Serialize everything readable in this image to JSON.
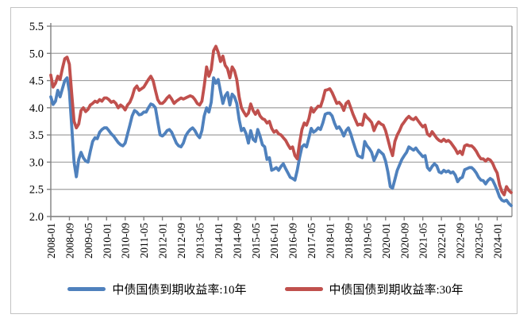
{
  "chart_data": {
    "type": "line",
    "x_start": "2008-01",
    "x_end": "2024-07",
    "x_interval": "monthly",
    "x_tick_every": 8,
    "x_tick_labels": [
      "2008-01",
      "2008-09",
      "2009-05",
      "2010-01",
      "2010-09",
      "2011-05",
      "2012-01",
      "2012-09",
      "2013-05",
      "2014-01",
      "2014-09",
      "2015-05",
      "2016-01",
      "2016-09",
      "2017-05",
      "2018-01",
      "2018-09",
      "2019-05",
      "2020-01",
      "2020-09",
      "2021-05",
      "2022-01",
      "2022-09",
      "2023-05",
      "2024-01"
    ],
    "y_tick_labels": [
      "5.5",
      "5.0",
      "4.5",
      "4.0",
      "3.5",
      "3.0",
      "2.5",
      "2.0"
    ],
    "ylim": [
      2.0,
      5.5
    ],
    "grid": "horizontal",
    "legend_position": "bottom",
    "series": [
      {
        "name": "中债国债到期收益率:10年",
        "color": "#4F81BD",
        "values": [
          4.2,
          4.06,
          4.12,
          4.32,
          4.2,
          4.35,
          4.5,
          4.55,
          4.3,
          3.65,
          3.0,
          2.73,
          3.05,
          3.18,
          3.08,
          3.02,
          3.0,
          3.2,
          3.38,
          3.45,
          3.43,
          3.55,
          3.6,
          3.63,
          3.63,
          3.58,
          3.52,
          3.48,
          3.42,
          3.36,
          3.32,
          3.3,
          3.35,
          3.52,
          3.68,
          3.85,
          3.95,
          3.92,
          3.87,
          3.88,
          3.92,
          3.92,
          4.0,
          4.07,
          4.05,
          4.0,
          3.75,
          3.5,
          3.48,
          3.52,
          3.58,
          3.6,
          3.55,
          3.45,
          3.35,
          3.3,
          3.28,
          3.35,
          3.48,
          3.55,
          3.6,
          3.63,
          3.58,
          3.5,
          3.45,
          3.58,
          3.85,
          4.0,
          3.92,
          4.1,
          4.55,
          4.45,
          4.52,
          4.3,
          4.08,
          4.22,
          4.28,
          4.05,
          4.25,
          4.2,
          4.08,
          3.78,
          3.58,
          3.62,
          3.52,
          3.35,
          3.58,
          3.42,
          3.38,
          3.6,
          3.48,
          3.32,
          3.28,
          3.05,
          3.08,
          2.85,
          2.87,
          2.9,
          2.85,
          2.92,
          2.97,
          2.88,
          2.8,
          2.72,
          2.7,
          2.67,
          2.85,
          3.08,
          3.28,
          3.32,
          3.28,
          3.45,
          3.62,
          3.55,
          3.58,
          3.63,
          3.6,
          3.72,
          3.88,
          3.9,
          3.9,
          3.85,
          3.72,
          3.62,
          3.65,
          3.58,
          3.48,
          3.58,
          3.63,
          3.52,
          3.38,
          3.25,
          3.12,
          3.1,
          3.08,
          3.38,
          3.3,
          3.25,
          3.18,
          3.03,
          3.12,
          3.22,
          3.18,
          3.14,
          3.02,
          2.82,
          2.55,
          2.52,
          2.68,
          2.85,
          2.95,
          3.05,
          3.12,
          3.18,
          3.28,
          3.25,
          3.22,
          3.26,
          3.2,
          3.15,
          3.1,
          3.12,
          2.9,
          2.85,
          2.92,
          2.97,
          2.93,
          2.82,
          2.8,
          2.85,
          2.82,
          2.84,
          2.8,
          2.82,
          2.76,
          2.64,
          2.7,
          2.72,
          2.86,
          2.88,
          2.9,
          2.9,
          2.86,
          2.8,
          2.72,
          2.67,
          2.66,
          2.6,
          2.66,
          2.7,
          2.67,
          2.58,
          2.48,
          2.36,
          2.3,
          2.28,
          2.3,
          2.24,
          2.2
        ]
      },
      {
        "name": "中债国债到期收益率:30年",
        "color": "#C0504D",
        "values": [
          4.6,
          4.38,
          4.45,
          4.58,
          4.52,
          4.72,
          4.9,
          4.93,
          4.8,
          4.25,
          3.75,
          3.63,
          3.7,
          3.95,
          4.0,
          3.93,
          3.97,
          4.05,
          4.08,
          4.12,
          4.1,
          4.15,
          4.12,
          4.18,
          4.18,
          4.15,
          4.1,
          4.12,
          4.08,
          4.0,
          4.05,
          4.02,
          3.96,
          4.05,
          4.1,
          4.2,
          4.35,
          4.4,
          4.32,
          4.35,
          4.38,
          4.45,
          4.52,
          4.58,
          4.5,
          4.32,
          4.15,
          4.08,
          4.08,
          4.12,
          4.18,
          4.22,
          4.16,
          4.08,
          4.12,
          4.15,
          4.18,
          4.16,
          4.18,
          4.2,
          4.22,
          4.2,
          4.15,
          4.08,
          4.05,
          4.12,
          4.4,
          4.75,
          4.58,
          4.7,
          5.05,
          5.13,
          5.02,
          4.85,
          4.95,
          4.78,
          4.72,
          4.55,
          4.75,
          4.68,
          4.52,
          4.2,
          4.0,
          3.92,
          3.85,
          3.9,
          4.07,
          3.95,
          3.88,
          3.95,
          3.85,
          3.8,
          3.78,
          3.72,
          3.75,
          3.62,
          3.55,
          3.58,
          3.52,
          3.5,
          3.45,
          3.4,
          3.32,
          3.25,
          3.28,
          3.12,
          3.06,
          3.35,
          3.6,
          3.72,
          3.68,
          3.8,
          4.0,
          3.92,
          3.98,
          4.03,
          4.02,
          4.15,
          4.32,
          4.33,
          4.35,
          4.28,
          4.18,
          4.08,
          4.1,
          4.05,
          3.95,
          4.08,
          4.12,
          4.0,
          3.88,
          3.78,
          3.68,
          3.7,
          3.68,
          3.88,
          3.82,
          3.78,
          3.73,
          3.58,
          3.68,
          3.74,
          3.7,
          3.68,
          3.58,
          3.42,
          3.25,
          3.12,
          3.38,
          3.5,
          3.58,
          3.68,
          3.74,
          3.8,
          3.84,
          3.8,
          3.78,
          3.82,
          3.76,
          3.7,
          3.65,
          3.68,
          3.52,
          3.48,
          3.56,
          3.5,
          3.44,
          3.4,
          3.38,
          3.42,
          3.38,
          3.4,
          3.36,
          3.3,
          3.24,
          3.16,
          3.2,
          3.14,
          3.3,
          3.32,
          3.3,
          3.3,
          3.26,
          3.2,
          3.12,
          3.06,
          3.06,
          3.02,
          3.06,
          3.04,
          2.98,
          2.88,
          2.8,
          2.58,
          2.46,
          2.4,
          2.55,
          2.48,
          2.44
        ]
      }
    ]
  },
  "style": {
    "grid_color": "#a0a0a0",
    "axis_color": "#808080",
    "border_color": "#c3c3c3",
    "background": "#ffffff",
    "label_color": "#000000"
  }
}
